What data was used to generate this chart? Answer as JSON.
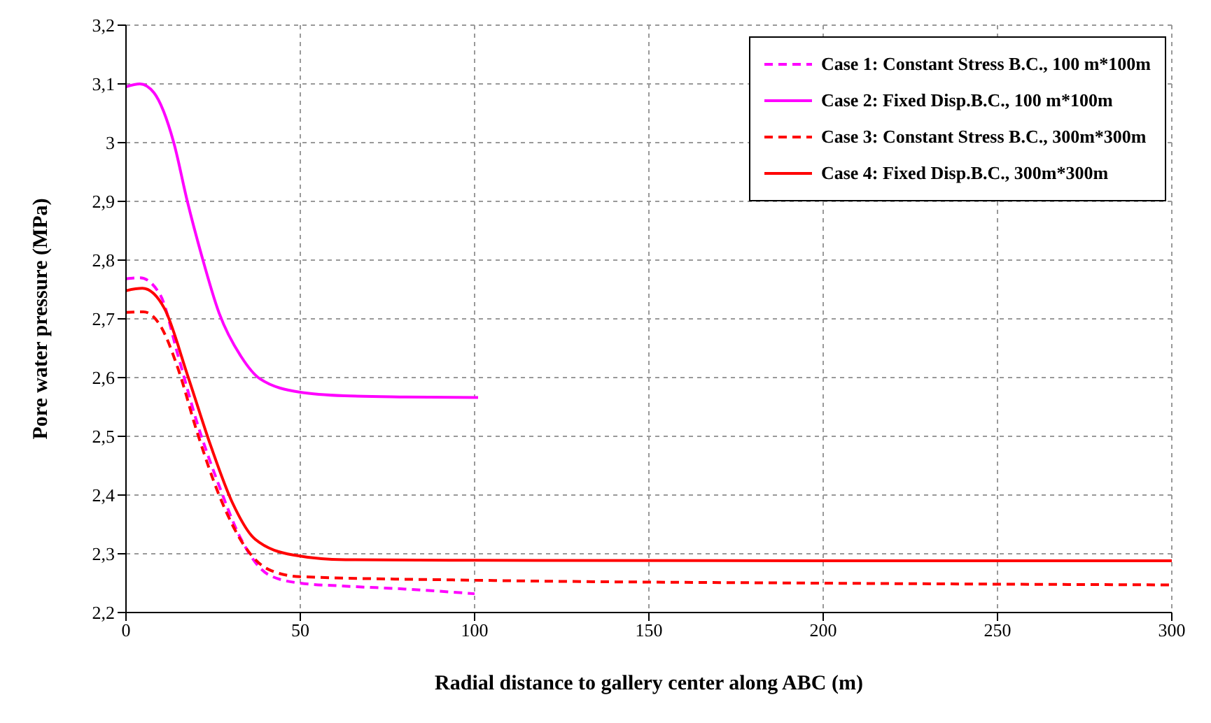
{
  "chart_data": {
    "type": "line",
    "xlabel": "Radial distance to gallery center along ABC (m)",
    "ylabel": "Pore water pressure (MPa)",
    "xlim": [
      0,
      300
    ],
    "xticks": [
      0,
      50,
      100,
      150,
      200,
      250,
      300
    ],
    "ylim": [
      2.2,
      3.2
    ],
    "yticks": [
      {
        "value": 2.2,
        "label": "2,2"
      },
      {
        "value": 2.3,
        "label": "2,3"
      },
      {
        "value": 2.4,
        "label": "2,4"
      },
      {
        "value": 2.5,
        "label": "2,5"
      },
      {
        "value": 2.6,
        "label": "2,6"
      },
      {
        "value": 2.7,
        "label": "2,7"
      },
      {
        "value": 2.8,
        "label": "2,8"
      },
      {
        "value": 2.9,
        "label": "2,9"
      },
      {
        "value": 3.0,
        "label": "3"
      },
      {
        "value": 3.1,
        "label": "3,1"
      },
      {
        "value": 3.2,
        "label": "3,2"
      }
    ],
    "grid": true,
    "legend": "top right",
    "marker": "none",
    "series": [
      {
        "name": "Case 1: Constant Stress B.C., 100 m*100m",
        "color": "#ff00ff",
        "line_style": "dashed",
        "x": [
          0,
          4,
          9.8,
          15,
          20.4,
          26.7,
          33,
          41,
          50,
          62.7,
          80,
          100
        ],
        "values": [
          2.768,
          2.77,
          2.741,
          2.636,
          2.523,
          2.416,
          2.325,
          2.264,
          2.25,
          2.245,
          2.24,
          2.232
        ]
      },
      {
        "name": "Case 2: Fixed Disp.B.C., 100 m*100m",
        "color": "#ff00ff",
        "line_style": "solid",
        "x": [
          0,
          4,
          8,
          13.7,
          17.6,
          21.6,
          26.7,
          33,
          38.4,
          50,
          62.7,
          80,
          101
        ],
        "values": [
          3.095,
          3.1,
          3.085,
          3.0,
          2.9,
          2.81,
          2.71,
          2.636,
          2.598,
          2.575,
          2.569,
          2.567,
          2.566
        ]
      },
      {
        "name": "Case 3: Constant Stress B.C., 300m*300m",
        "color": "#ff0000",
        "line_style": "dashed",
        "x": [
          0,
          5,
          9.8,
          15,
          20.4,
          26.7,
          34.5,
          41,
          50,
          100,
          200,
          300
        ],
        "values": [
          2.711,
          2.712,
          2.689,
          2.614,
          2.507,
          2.4,
          2.309,
          2.273,
          2.261,
          2.255,
          2.25,
          2.247
        ]
      },
      {
        "name": "Case 4: Fixed Disp.B.C., 300m*300m",
        "color": "#ff0000",
        "line_style": "solid",
        "x": [
          0,
          4.7,
          11,
          17.6,
          24.3,
          30.6,
          37,
          48,
          63,
          100,
          200,
          300
        ],
        "values": [
          2.748,
          2.752,
          2.718,
          2.605,
          2.484,
          2.386,
          2.325,
          2.298,
          2.29,
          2.289,
          2.288,
          2.288
        ]
      }
    ]
  }
}
